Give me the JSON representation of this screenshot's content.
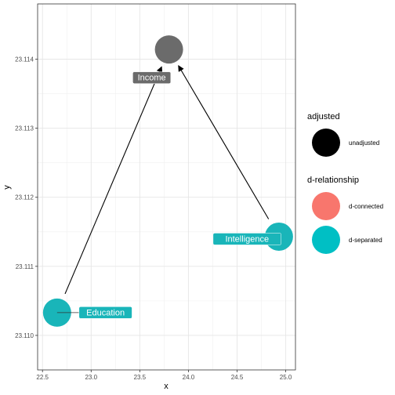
{
  "chart_data": {
    "type": "scatter",
    "subtype": "dag",
    "xlabel": "x",
    "ylabel": "y",
    "xlim": [
      22.45,
      25.1
    ],
    "ylim": [
      23.1095,
      23.1148
    ],
    "x_ticks": [
      22.5,
      23.0,
      23.5,
      24.0,
      24.5,
      25.0
    ],
    "x_tick_labels": [
      "22.5",
      "23.0",
      "23.5",
      "24.0",
      "24.5",
      "25.0"
    ],
    "y_ticks": [
      23.11,
      23.111,
      23.112,
      23.113,
      23.114
    ],
    "y_tick_labels": [
      "23.110",
      "23.111",
      "23.112",
      "23.113",
      "23.114"
    ],
    "grid": true,
    "nodes": [
      {
        "name": "Income",
        "x": 23.8,
        "y": 23.11414,
        "adjusted": "unadjusted",
        "d_relationship": null,
        "color": "#6b6b6b"
      },
      {
        "name": "Education",
        "x": 22.65,
        "y": 23.11033,
        "adjusted": "unadjusted",
        "d_relationship": "d-separated",
        "color": "#19b5b9"
      },
      {
        "name": "Intelligence",
        "x": 24.93,
        "y": 23.11143,
        "adjusted": "unadjusted",
        "d_relationship": "d-separated",
        "color": "#19b5b9"
      }
    ],
    "edges": [
      {
        "from": "Education",
        "to": "Income"
      },
      {
        "from": "Intelligence",
        "to": "Income"
      }
    ],
    "legend": {
      "placement": "right",
      "groups": [
        {
          "title": "adjusted",
          "entries": [
            {
              "label": "unadjusted",
              "color": "#000000"
            }
          ]
        },
        {
          "title": "d-relationship",
          "entries": [
            {
              "label": "d-connected",
              "color": "#f8766d"
            },
            {
              "label": "d-separated",
              "color": "#00bfc4"
            }
          ]
        }
      ]
    }
  }
}
